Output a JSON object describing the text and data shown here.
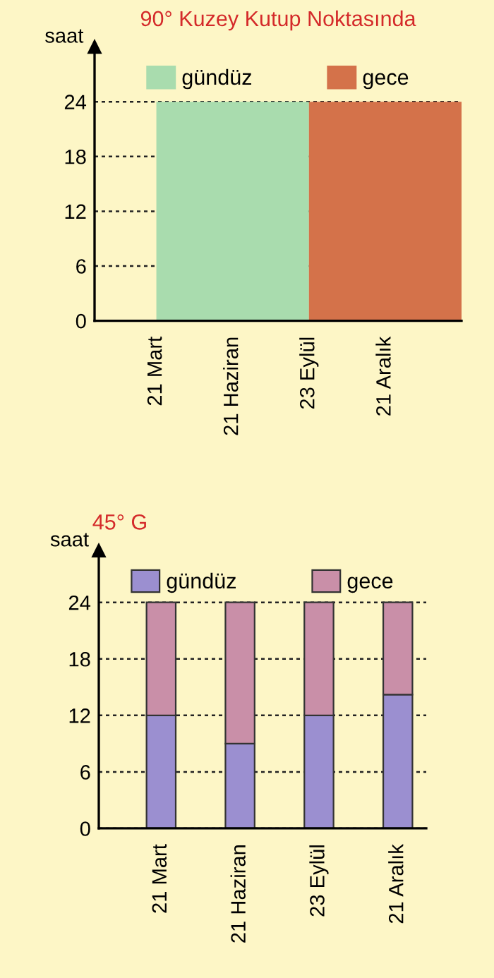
{
  "chart_data": [
    {
      "type": "area",
      "title": "90° Kuzey Kutup Noktasında",
      "ylabel": "saat",
      "categories": [
        "21 Mart",
        "21 Haziran",
        "23 Eylül",
        "21 Aralık",
        null
      ],
      "series": [
        {
          "name": "gündüz",
          "color": "#a9dcae",
          "values": [
            24,
            24,
            24,
            null,
            null
          ]
        },
        {
          "name": "gece",
          "color": "#d4724a",
          "values": [
            null,
            null,
            24,
            24,
            24
          ]
        }
      ],
      "ylim": [
        0,
        30
      ],
      "yticks": [
        0,
        6,
        12,
        18,
        24
      ],
      "grid": "y",
      "legend": "top"
    },
    {
      "type": "bar",
      "stacked": true,
      "title": "45° G",
      "ylabel": "saat",
      "categories": [
        "21 Mart",
        "21 Haziran",
        "23 Eylül",
        "21 Aralık"
      ],
      "series": [
        {
          "name": "gündüz",
          "color": "#9b8fd0",
          "values": [
            12,
            9,
            12,
            14.2
          ]
        },
        {
          "name": "gece",
          "color": "#c98fa8",
          "values": [
            12,
            15,
            12,
            9.8
          ]
        }
      ],
      "ylim": [
        0,
        29.5
      ],
      "yticks": [
        0,
        6,
        12,
        18,
        24
      ],
      "grid": "y",
      "legend": "top"
    }
  ]
}
